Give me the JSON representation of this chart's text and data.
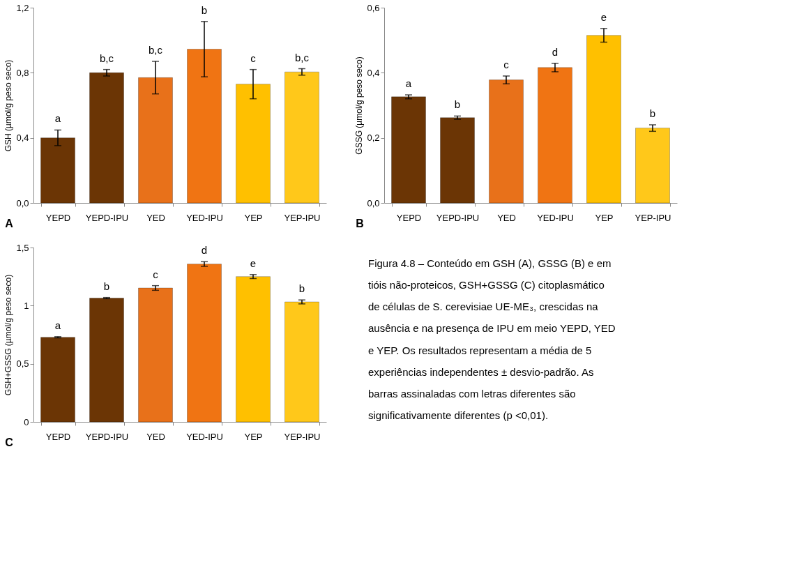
{
  "chart_data": [
    {
      "type": "bar",
      "ylabel": "GSH (µmol/g peso seco)",
      "categories": [
        "YEPD",
        "YEPD-IPU",
        "YED",
        "YED-IPU",
        "YEP",
        "YEP-IPU"
      ],
      "values": [
        0.4,
        0.8,
        0.77,
        0.945,
        0.73,
        0.805
      ],
      "errors": [
        0.048,
        0.02,
        0.1,
        0.17,
        0.09,
        0.02
      ],
      "colors": [
        "#6b3505",
        "#6b3505",
        "#e8711a",
        "#f07413",
        "#ffc000",
        "#ffc81a"
      ],
      "ylim": [
        0,
        1.2
      ],
      "yticks": [
        {
          "value": 0,
          "label": "0,0"
        },
        {
          "value": 0.4,
          "label": "0,4"
        },
        {
          "value": 0.8,
          "label": "0,8"
        },
        {
          "value": 1.2,
          "label": "1,2"
        }
      ],
      "grid": false,
      "annotations": [
        {
          "text": "a",
          "x": "YEPD",
          "y": 0.448
        },
        {
          "text": "b,c",
          "x": "YEPD-IPU",
          "y": 0.82
        },
        {
          "text": "b,c",
          "x": "YED",
          "y": 0.87
        },
        {
          "text": "b",
          "x": "YED-IPU",
          "y": 1.115
        },
        {
          "text": "c",
          "x": "YEP",
          "y": 0.82
        },
        {
          "text": "b,c",
          "x": "YEP-IPU",
          "y": 0.825
        },
        "A"
      ]
    },
    {
      "type": "bar",
      "ylabel": "GSSG (µmol/g peso seco)",
      "categories": [
        "YEPD",
        "YEPD-IPU",
        "YED",
        "YED-IPU",
        "YEP",
        "YEP-IPU"
      ],
      "values": [
        0.326,
        0.262,
        0.378,
        0.416,
        0.515,
        0.23
      ],
      "errors": [
        0.006,
        0.005,
        0.012,
        0.013,
        0.021,
        0.01
      ],
      "colors": [
        "#6b3505",
        "#6b3505",
        "#e8711a",
        "#f07413",
        "#ffc000",
        "#ffc81a"
      ],
      "ylim": [
        0,
        0.6
      ],
      "yticks": [
        {
          "value": 0,
          "label": "0,0"
        },
        {
          "value": 0.2,
          "label": "0,2"
        },
        {
          "value": 0.4,
          "label": "0,4"
        },
        {
          "value": 0.6,
          "label": "0,6"
        }
      ],
      "grid": false,
      "annotations": [
        {
          "text": "a",
          "x": "YEPD",
          "y": 0.332
        },
        {
          "text": "b",
          "x": "YEPD-IPU",
          "y": 0.267
        },
        {
          "text": "c",
          "x": "YED",
          "y": 0.39
        },
        {
          "text": "d",
          "x": "YED-IPU",
          "y": 0.429
        },
        {
          "text": "e",
          "x": "YEP",
          "y": 0.536
        },
        {
          "text": "b",
          "x": "YEP-IPU",
          "y": 0.24
        },
        "B"
      ]
    },
    {
      "type": "bar",
      "ylabel": "GSH+GSSG (µmol/g peso seco)",
      "categories": [
        "YEPD",
        "YEPD-IPU",
        "YED",
        "YED-IPU",
        "YEP",
        "YEP-IPU"
      ],
      "values": [
        0.728,
        1.065,
        1.152,
        1.358,
        1.25,
        1.032
      ],
      "errors": [
        0.005,
        0.005,
        0.02,
        0.02,
        0.017,
        0.017
      ],
      "colors": [
        "#6b3505",
        "#6b3505",
        "#e8711a",
        "#f07413",
        "#ffc000",
        "#ffc81a"
      ],
      "ylim": [
        0,
        1.5
      ],
      "yticks": [
        0,
        {
          "value": 0.5,
          "label": "0,5"
        },
        1,
        {
          "value": 1.5,
          "label": "1,5"
        }
      ],
      "grid": false,
      "annotations": [
        {
          "text": "a",
          "x": "YEPD",
          "y": 0.733
        },
        {
          "text": "b",
          "x": "YEPD-IPU",
          "y": 1.07
        },
        {
          "text": "c",
          "x": "YED",
          "y": 1.172
        },
        {
          "text": "d",
          "x": "YED-IPU",
          "y": 1.378
        },
        {
          "text": "e",
          "x": "YEP",
          "y": 1.267
        },
        {
          "text": "b",
          "x": "YEP-IPU",
          "y": 1.049
        },
        "C"
      ]
    },
    {
      "type": "other",
      "annotations": [
        "Figura 4.8 – Conteúdo em GSH (A), GSSG (B) e em tióis não-proteicos, GSH+GSSG (C) citoplasmático de células de S. cerevisiae UE-ME₃, crescidas na ausência e na presença de IPU em meio YEPD, YED e YEP. Os resultados representam a média de 5 experiências independentes ± desvio-padrão. As barras assinaladas com letras diferentes são significativamente diferentes (p <0,01)."
      ]
    }
  ]
}
